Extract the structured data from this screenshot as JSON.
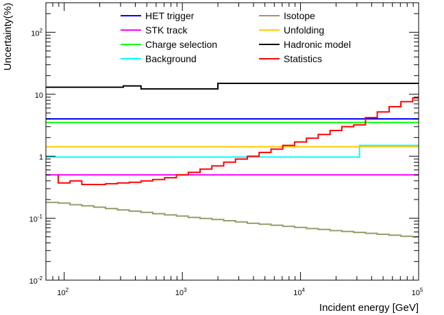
{
  "chart_data": {
    "type": "line",
    "title": "",
    "xlabel": "Incident energy [GeV]",
    "ylabel": "Uncertainty(%)",
    "xscale": "log",
    "yscale": "log",
    "xlim": [
      70,
      100000
    ],
    "ylim": [
      0.01,
      300
    ],
    "grid": false,
    "legend_position": "top",
    "x_tick_labels": [
      {
        "value": 100,
        "base": "10",
        "exp": "2"
      },
      {
        "value": 1000,
        "base": "10",
        "exp": "3"
      },
      {
        "value": 10000,
        "base": "10",
        "exp": "4"
      },
      {
        "value": 100000,
        "base": "10",
        "exp": "5"
      }
    ],
    "y_tick_labels": [
      {
        "value": 0.01,
        "base": "10",
        "exp": "-2"
      },
      {
        "value": 0.1,
        "base": "10",
        "exp": "-1"
      },
      {
        "value": 1,
        "base": "1",
        "exp": ""
      },
      {
        "value": 10,
        "base": "10",
        "exp": ""
      },
      {
        "value": 100,
        "base": "10",
        "exp": "2"
      }
    ],
    "series": [
      {
        "name": "HET trigger",
        "color": "#0000ff",
        "step": true,
        "x": [
          70,
          100000
        ],
        "y": [
          4.0,
          4.0
        ]
      },
      {
        "name": "STK track",
        "color": "#ff00ff",
        "step": true,
        "x": [
          70,
          100000
        ],
        "y": [
          0.5,
          0.5
        ]
      },
      {
        "name": "Charge selection",
        "color": "#00ff00",
        "step": true,
        "x": [
          70,
          100000
        ],
        "y": [
          3.5,
          3.5
        ]
      },
      {
        "name": "Background",
        "color": "#00ffff",
        "step": true,
        "x": [
          70,
          31600,
          31600,
          100000
        ],
        "y": [
          0.97,
          0.97,
          1.5,
          1.5
        ]
      },
      {
        "name": "Isotope",
        "color": "#999966",
        "step": true,
        "x": [
          70,
          89,
          89,
          112,
          112,
          141,
          141,
          178,
          178,
          224,
          224,
          282,
          282,
          355,
          355,
          447,
          447,
          562,
          562,
          708,
          708,
          891,
          891,
          1122,
          1122,
          1413,
          1413,
          1778,
          1778,
          2239,
          2239,
          2818,
          2818,
          3548,
          3548,
          4467,
          4467,
          5623,
          5623,
          7079,
          7079,
          8913,
          8913,
          11220,
          11220,
          14125,
          14125,
          17783,
          17783,
          22387,
          22387,
          28184,
          28184,
          35481,
          35481,
          44668,
          44668,
          56234,
          56234,
          70795,
          70795,
          89125,
          89125,
          100000
        ],
        "y": [
          0.18,
          0.18,
          0.175,
          0.175,
          0.165,
          0.165,
          0.158,
          0.158,
          0.15,
          0.15,
          0.143,
          0.143,
          0.136,
          0.136,
          0.13,
          0.13,
          0.124,
          0.124,
          0.118,
          0.118,
          0.113,
          0.113,
          0.108,
          0.108,
          0.103,
          0.103,
          0.099,
          0.099,
          0.095,
          0.095,
          0.091,
          0.091,
          0.087,
          0.087,
          0.083,
          0.083,
          0.08,
          0.08,
          0.077,
          0.077,
          0.074,
          0.074,
          0.071,
          0.071,
          0.068,
          0.068,
          0.066,
          0.066,
          0.063,
          0.063,
          0.061,
          0.061,
          0.059,
          0.059,
          0.057,
          0.057,
          0.055,
          0.055,
          0.053,
          0.053,
          0.051,
          0.051,
          0.05,
          0.05
        ]
      },
      {
        "name": "Unfolding",
        "color": "#ffcc00",
        "step": true,
        "x": [
          70,
          100000
        ],
        "y": [
          1.42,
          1.42
        ]
      },
      {
        "name": "Hadronic model",
        "color": "#000000",
        "step": true,
        "x": [
          70,
          316,
          316,
          447,
          447,
          2000,
          2000,
          100000
        ],
        "y": [
          13.0,
          13.0,
          13.6,
          13.6,
          12.2,
          12.2,
          15.0,
          15.0
        ]
      },
      {
        "name": "Statistics",
        "color": "#ff0000",
        "step": true,
        "x": [
          89,
          89,
          112,
          112,
          141,
          141,
          178,
          178,
          224,
          224,
          282,
          282,
          355,
          355,
          447,
          447,
          562,
          562,
          708,
          708,
          891,
          891,
          1122,
          1122,
          1413,
          1413,
          1778,
          1778,
          2239,
          2239,
          2818,
          2818,
          3548,
          3548,
          4467,
          4467,
          5623,
          5623,
          7079,
          7079,
          8913,
          8913,
          11220,
          11220,
          14125,
          14125,
          17783,
          17783,
          22387,
          22387,
          28184,
          28184,
          35481,
          35481,
          44668,
          44668,
          56234,
          56234,
          70795,
          70795,
          89125,
          89125,
          100000
        ],
        "y": [
          0.5,
          0.37,
          0.37,
          0.4,
          0.4,
          0.35,
          0.35,
          0.35,
          0.35,
          0.36,
          0.36,
          0.37,
          0.37,
          0.38,
          0.38,
          0.4,
          0.4,
          0.42,
          0.42,
          0.45,
          0.45,
          0.5,
          0.5,
          0.55,
          0.55,
          0.62,
          0.62,
          0.7,
          0.7,
          0.8,
          0.8,
          0.9,
          0.9,
          1.0,
          1.0,
          1.15,
          1.15,
          1.3,
          1.3,
          1.5,
          1.5,
          1.7,
          1.7,
          1.95,
          1.95,
          2.25,
          2.25,
          2.6,
          2.6,
          3.0,
          3.0,
          3.2,
          3.2,
          4.2,
          4.2,
          5.2,
          5.2,
          6.3,
          6.3,
          7.6,
          7.6,
          8.7,
          8.7
        ]
      }
    ],
    "legend_columns": [
      [
        "HET trigger",
        "STK track",
        "Charge selection",
        "Background"
      ],
      [
        "Isotope",
        "Unfolding",
        "Hadronic model",
        "Statistics"
      ]
    ]
  }
}
